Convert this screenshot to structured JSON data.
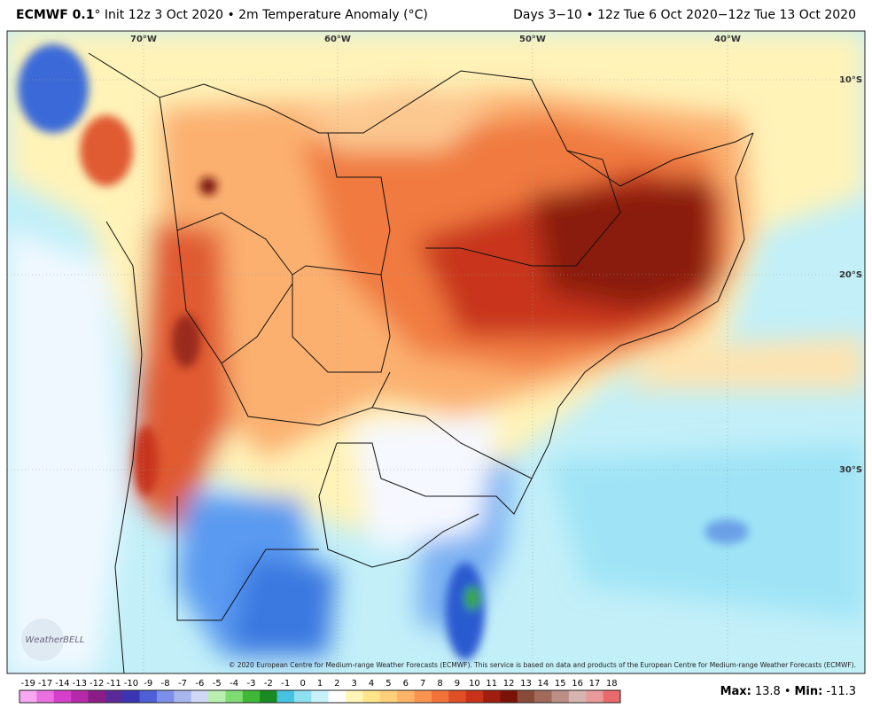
{
  "header": {
    "title_bold": "ECMWF 0.1",
    "title_rest": "° Init 12z 3 Oct 2020 • 2m Temperature Anomaly (°C)",
    "period": "Days 3−10 • 12z Tue 6 Oct 2020−12z Tue 13 Oct 2020"
  },
  "map": {
    "longitude_labels": [
      "70°W",
      "60°W",
      "50°W",
      "40°W"
    ],
    "latitude_labels": [
      "10°S",
      "20°S",
      "30°S"
    ],
    "copyright": "© 2020 European Centre for Medium-range Weather Forecasts (ECMWF). This service is based on data and products of the European Centre for Medium-range Weather Forecasts (ECMWF).",
    "logo": "WeatherBELL"
  },
  "colorbar": {
    "labels": [
      -19,
      -17,
      -14,
      -13,
      -12,
      -11,
      -10,
      -9,
      -8,
      -7,
      -6,
      -5,
      -4,
      -3,
      -2,
      -1,
      0,
      1,
      2,
      3,
      4,
      5,
      6,
      7,
      8,
      9,
      10,
      11,
      12,
      13,
      14,
      15,
      16,
      17,
      18
    ],
    "colors": [
      "#f7a8f0",
      "#ea6fe0",
      "#d63fcc",
      "#b52aa8",
      "#8a1d86",
      "#5a2a9a",
      "#3a35b5",
      "#4f5fd6",
      "#7d8fe8",
      "#a8b5ef",
      "#d0d8f5",
      "#b9f0b0",
      "#7fdc72",
      "#3fb838",
      "#1c8a22",
      "#44c2e0",
      "#8ee0f0",
      "#c8f2fa",
      "#ffffff",
      "#fff6b8",
      "#ffe48a",
      "#ffcf7a",
      "#ffb366",
      "#fb9350",
      "#f2723a",
      "#e04f26",
      "#c83218",
      "#a01e10",
      "#7a1208",
      "#8a4a3a",
      "#a26a5a",
      "#bb8f85",
      "#d6b5b0",
      "#e89a9a",
      "#e86a6a"
    ]
  },
  "stats": {
    "max_label": "Max:",
    "max": 13.8,
    "separator": "•",
    "min_label": "Min:",
    "min": -11.3
  }
}
